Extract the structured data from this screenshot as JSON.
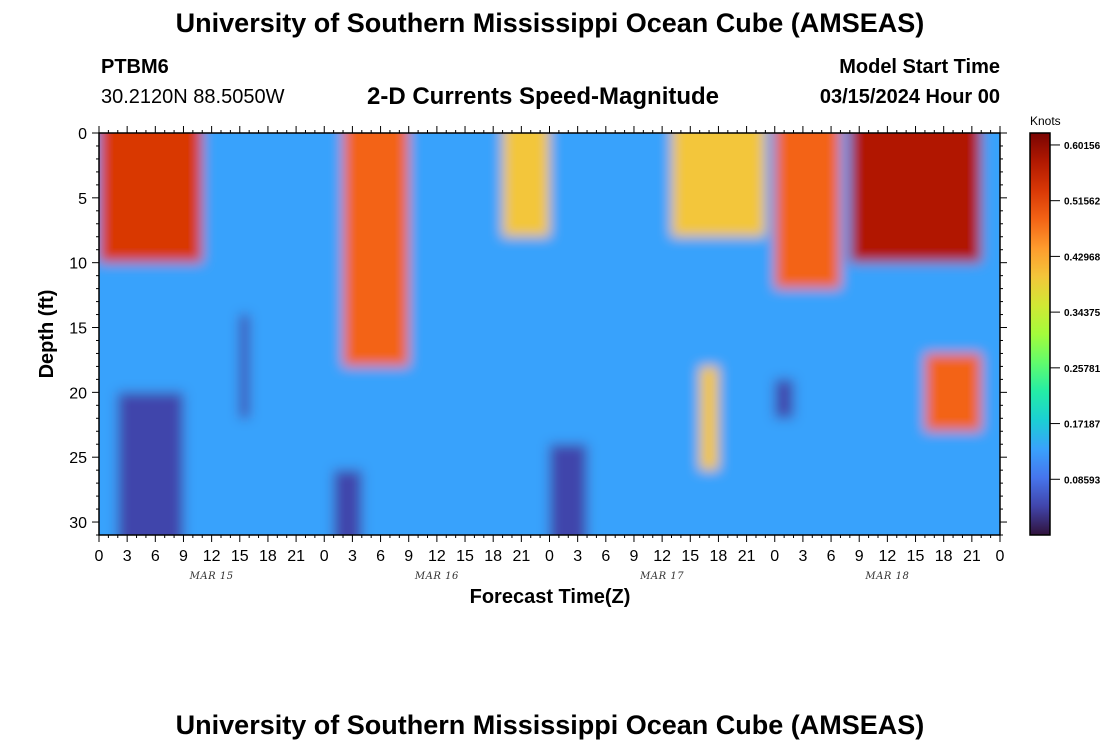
{
  "header": {
    "title": "University of Southern Mississippi Ocean Cube (AMSEAS)",
    "station_id": "PTBM6",
    "coords": "30.2120N  88.5050W",
    "plot_title": "2-D Currents Speed-Magnitude",
    "model_start_label": "Model Start Time",
    "model_start_value": "03/15/2024 Hour 00"
  },
  "footer": {
    "title": "University of Southern Mississippi Ocean Cube (AMSEAS)"
  },
  "colors": {
    "colormap": [
      "#30123b",
      "#4145ab",
      "#4675ed",
      "#39a2fc",
      "#1bcfd4",
      "#24eca6",
      "#61fc6c",
      "#a4fc3b",
      "#d1e834",
      "#f3c63a",
      "#fe9b2d",
      "#f36315",
      "#d93806",
      "#b11901",
      "#7a0402"
    ]
  },
  "chart_data": {
    "type": "heatmap",
    "title": "2-D Currents Speed-Magnitude",
    "xlabel": "Forecast Time(Z)",
    "ylabel": "Depth (ft)",
    "x_tick_labels": [
      "0",
      "3",
      "6",
      "9",
      "12",
      "15",
      "18",
      "21",
      "0",
      "3",
      "6",
      "9",
      "12",
      "15",
      "18",
      "21",
      "0",
      "3",
      "6",
      "9",
      "12",
      "15",
      "18",
      "21",
      "0",
      "3",
      "6",
      "9",
      "12",
      "15",
      "18",
      "21",
      "0"
    ],
    "x_range_hours": [
      0,
      96
    ],
    "day_labels": [
      "MAR 15",
      "MAR 16",
      "MAR 17",
      "MAR 18"
    ],
    "y_ticks": [
      0,
      5,
      10,
      15,
      20,
      25,
      30
    ],
    "ylim": [
      0,
      31
    ],
    "y_inverted": true,
    "colorbar": {
      "unit": "Knots",
      "range": [
        0,
        0.62
      ],
      "tick_values": [
        0.60156,
        0.51562,
        0.42968,
        0.34375,
        0.25781,
        0.17187,
        0.08593
      ],
      "tick_labels": [
        "0.60156",
        "0.51562",
        "0.42968",
        "0.34375",
        "0.25781",
        "0.17187",
        "0.08593"
      ]
    },
    "speed_features_knots": [
      {
        "t": [
          0,
          11
        ],
        "depth": [
          0,
          10
        ],
        "value": 0.52
      },
      {
        "t": [
          2,
          9
        ],
        "depth": [
          20,
          31
        ],
        "value": 0.06
      },
      {
        "t": [
          15,
          16
        ],
        "depth": [
          14,
          22
        ],
        "value": 0.06
      },
      {
        "t": [
          26,
          33
        ],
        "depth": [
          0,
          18
        ],
        "value": 0.5
      },
      {
        "t": [
          25,
          28
        ],
        "depth": [
          26,
          31
        ],
        "value": 0.03
      },
      {
        "t": [
          43,
          48
        ],
        "depth": [
          0,
          8
        ],
        "value": 0.42
      },
      {
        "t": [
          48,
          52
        ],
        "depth": [
          24,
          31
        ],
        "value": 0.03
      },
      {
        "t": [
          61,
          71
        ],
        "depth": [
          0,
          8
        ],
        "value": 0.4
      },
      {
        "t": [
          64,
          66
        ],
        "depth": [
          18,
          26
        ],
        "value": 0.38
      },
      {
        "t": [
          72,
          79
        ],
        "depth": [
          0,
          12
        ],
        "value": 0.48
      },
      {
        "t": [
          80,
          94
        ],
        "depth": [
          0,
          10
        ],
        "value": 0.58
      },
      {
        "t": [
          88,
          94
        ],
        "depth": [
          17,
          23
        ],
        "value": 0.48
      },
      {
        "t": [
          72,
          74
        ],
        "depth": [
          19,
          22
        ],
        "value": 0.06
      }
    ]
  }
}
